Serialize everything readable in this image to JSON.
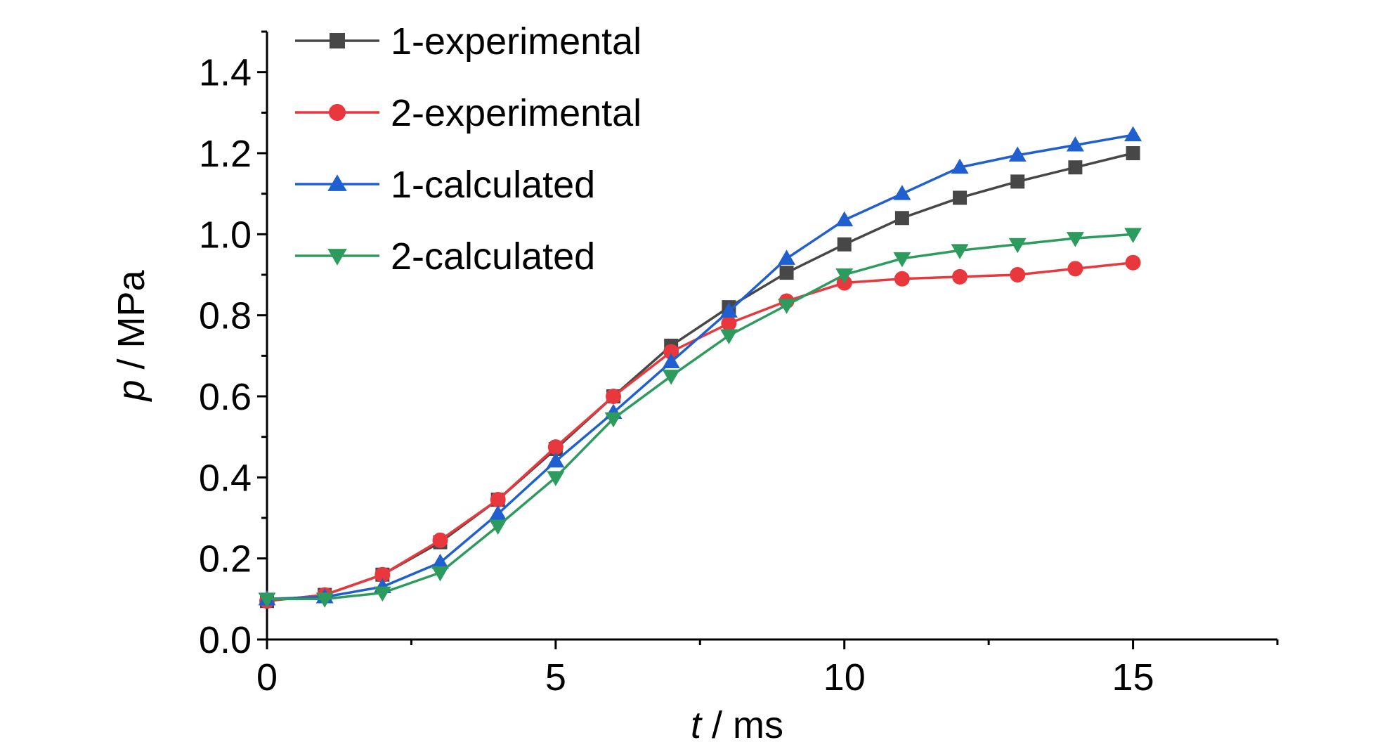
{
  "chart_data": {
    "type": "line",
    "xlabel": {
      "var": "t",
      "unit": " / ms"
    },
    "ylabel": {
      "var": "p",
      "unit": " / MPa"
    },
    "xlim": [
      0,
      17.5
    ],
    "ylim": [
      0,
      1.5
    ],
    "x_ticks": [
      0,
      5,
      10,
      15
    ],
    "x_tick_labels": [
      "0",
      "5",
      "10",
      "15"
    ],
    "y_ticks": [
      0.0,
      0.2,
      0.4,
      0.6,
      0.8,
      1.0,
      1.2,
      1.4
    ],
    "y_tick_labels": [
      "0.0",
      "0.2",
      "0.4",
      "0.6",
      "0.8",
      "1.0",
      "1.2",
      "1.4"
    ],
    "grid": false,
    "legend_position": "top-left",
    "x": [
      0,
      1,
      2,
      3,
      4,
      5,
      6,
      7,
      8,
      9,
      10,
      11,
      12,
      13,
      14,
      15
    ],
    "series": [
      {
        "name": "1-experimental",
        "color": "#474747",
        "marker": "square",
        "values": [
          0.095,
          0.11,
          0.16,
          0.24,
          0.345,
          0.47,
          0.6,
          0.725,
          0.82,
          0.905,
          0.975,
          1.04,
          1.09,
          1.13,
          1.165,
          1.2
        ]
      },
      {
        "name": "2-experimental",
        "color": "#e8383d",
        "marker": "circle",
        "values": [
          0.095,
          0.11,
          0.16,
          0.245,
          0.345,
          0.475,
          0.6,
          0.71,
          0.78,
          0.835,
          0.88,
          0.89,
          0.895,
          0.9,
          0.915,
          0.93
        ]
      },
      {
        "name": "1-calculated",
        "color": "#1f5fd0",
        "marker": "triangle-up",
        "values": [
          0.1,
          0.105,
          0.13,
          0.19,
          0.31,
          0.44,
          0.56,
          0.685,
          0.81,
          0.94,
          1.035,
          1.1,
          1.165,
          1.195,
          1.22,
          1.245
        ]
      },
      {
        "name": "2-calculated",
        "color": "#2e9b5e",
        "marker": "triangle-down",
        "values": [
          0.1,
          0.1,
          0.115,
          0.165,
          0.28,
          0.4,
          0.545,
          0.65,
          0.75,
          0.825,
          0.9,
          0.94,
          0.96,
          0.975,
          0.99,
          1.0
        ]
      }
    ]
  }
}
